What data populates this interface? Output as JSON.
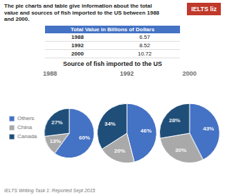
{
  "title": "The pie charts and table give information about the total\nvalue and sources of fish imported to the US between 1988\nand 2000.",
  "subtitle": "Source of fish imported to the US",
  "annotations": [
    {
      "text": "IELTS liz",
      "color": "#C0392B"
    },
    {
      "text": "IELTS Writing Task 1: Reported Sept 2015"
    }
  ],
  "chart_data": [
    {
      "type": "table",
      "title": "Total Value in Billions of Dollars",
      "categories": [
        "1988",
        "1992",
        "2000"
      ],
      "values": [
        6.57,
        8.52,
        10.72
      ],
      "color": "#4472C4"
    },
    {
      "type": "pie",
      "title": "1988",
      "categories": [
        "Others",
        "China",
        "Canada"
      ],
      "values": [
        60,
        13,
        27
      ],
      "value_labels": [
        "60%",
        "13%",
        "27%"
      ],
      "colors": [
        "#4472C4",
        "#A9A9A9",
        "#1F4E79"
      ],
      "data_labels": true,
      "legend": "left"
    },
    {
      "type": "pie",
      "title": "1992",
      "categories": [
        "Others",
        "China",
        "Canada"
      ],
      "values": [
        46,
        20,
        34
      ],
      "value_labels": [
        "46%",
        "20%",
        "34%"
      ],
      "colors": [
        "#4472C4",
        "#A9A9A9",
        "#1F4E79"
      ],
      "data_labels": true
    },
    {
      "type": "pie",
      "title": "2000",
      "categories": [
        "Others",
        "China",
        "Canada"
      ],
      "values": [
        43,
        30,
        28
      ],
      "value_labels": [
        "43%",
        "30%",
        "28%"
      ],
      "colors": [
        "#4472C4",
        "#A9A9A9",
        "#1F4E79"
      ],
      "data_labels": true
    }
  ]
}
